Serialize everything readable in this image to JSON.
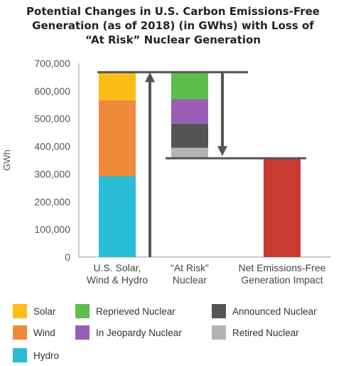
{
  "title_lines": [
    "Potential Changes in U.S. Carbon Emissions-Free",
    "Generation (as of 2018) (in GWhs) with Loss of",
    "“At Risk” Nuclear Generation"
  ],
  "chart_data": {
    "type": "bar",
    "subtype": "stacked-waterfall",
    "ylabel": "GWh",
    "ylim": [
      0,
      700000
    ],
    "yticks": [
      0,
      100000,
      200000,
      300000,
      400000,
      500000,
      600000,
      700000
    ],
    "ytick_labels": [
      "0",
      "100,000",
      "200,000",
      "300,000",
      "400,000",
      "500,000",
      "600,000",
      "700,000"
    ],
    "categories": [
      [
        "U.S. Solar,",
        "Wind & Hydro"
      ],
      [
        "“At Risk”",
        "Nuclear"
      ],
      [
        "Net Emissions-Free",
        "Generation Impact"
      ]
    ],
    "series": [
      {
        "name": "Hydro",
        "color": "#2bbcd6",
        "category": 0,
        "start": 0,
        "end": 292000
      },
      {
        "name": "Wind",
        "color": "#ef8a3a",
        "category": 0,
        "start": 292000,
        "end": 567000
      },
      {
        "name": "Solar",
        "color": "#fdbd17",
        "category": 0,
        "start": 567000,
        "end": 668000
      },
      {
        "name": "Retired Nuclear",
        "color": "#b3b3b3",
        "category": 1,
        "start": 357000,
        "end": 395000
      },
      {
        "name": "Announced Nuclear",
        "color": "#545454",
        "category": 1,
        "start": 395000,
        "end": 482000
      },
      {
        "name": "In Jeopardy Nuclear",
        "color": "#9a5db5",
        "category": 1,
        "start": 482000,
        "end": 570000
      },
      {
        "name": "Reprieved Nuclear",
        "color": "#5cbf4b",
        "category": 1,
        "start": 570000,
        "end": 668000
      },
      {
        "name": "Net Emissions-Free Generation Impact",
        "color": "#c83a32",
        "category": 2,
        "start": 0,
        "end": 357000
      }
    ],
    "reference_lines": [
      {
        "y": 668000,
        "from_category": 0,
        "to_category": 1
      },
      {
        "y": 357000,
        "from_category": 1,
        "to_category": 2
      }
    ],
    "arrows": [
      {
        "from": 0,
        "to": 668000,
        "between_categories": [
          0,
          1
        ],
        "direction": "up"
      },
      {
        "from": 668000,
        "to": 357000,
        "after_category": 1,
        "direction": "down"
      }
    ],
    "grid": false,
    "legend_position": "bottom"
  },
  "legend": [
    {
      "label": "Solar",
      "color": "#fdbd17"
    },
    {
      "label": "Reprieved Nuclear",
      "color": "#5cbf4b"
    },
    {
      "label": "Announced Nuclear",
      "color": "#545454"
    },
    {
      "label": "Wind",
      "color": "#ef8a3a"
    },
    {
      "label": "In Jeopardy Nuclear",
      "color": "#9a5db5"
    },
    {
      "label": "Retired Nuclear",
      "color": "#b3b3b3"
    },
    {
      "label": "Hydro",
      "color": "#2bbcd6"
    }
  ]
}
